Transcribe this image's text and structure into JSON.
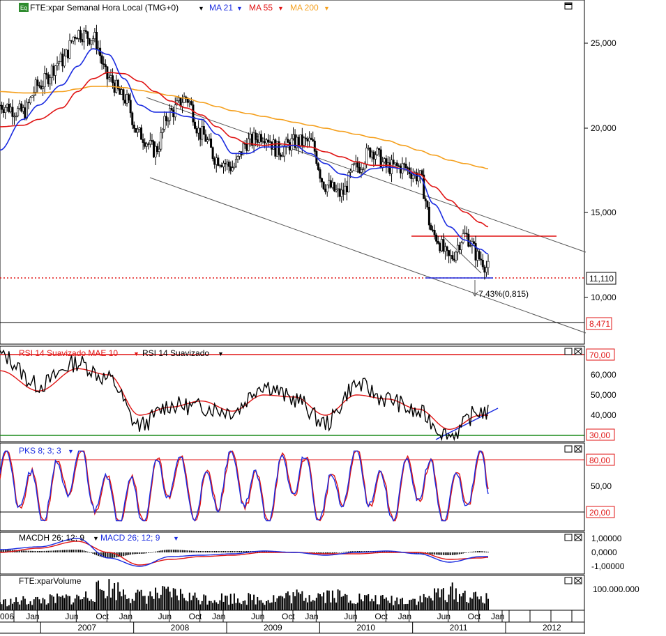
{
  "main_panel": {
    "icon_label": "Eq",
    "title": "FTE:xpar Semanal Hora Local (TMG+0)",
    "ma21_label": "MA 21",
    "ma55_label": "MA 55",
    "ma200_label": "MA 200",
    "price_ticks": [
      "25,000",
      "20,000",
      "15,000",
      "10,000"
    ],
    "last_price_label": "11,110",
    "support_label": "8,471",
    "annotation": "7,43%(0,815)"
  },
  "rsi_panel": {
    "title": "RSI 14 Suavizado MAE 10",
    "title2": "RSI 14 Suavizado",
    "ticks": [
      "70,00",
      "60,000",
      "50,000",
      "40,000",
      "30,00"
    ]
  },
  "pks_panel": {
    "title": "PKS 8; 3; 3",
    "ticks": [
      "80,00",
      "50,00",
      "20,00"
    ]
  },
  "macd_panel": {
    "title_a": "MACDH 26; 12; 9",
    "title_b": "MACD 26; 12; 9",
    "ticks": [
      "1,00000",
      "0,0000",
      "-1,00000"
    ]
  },
  "volume_panel": {
    "title": "FTE:xparVolume",
    "ticks": [
      "100.000.000"
    ]
  },
  "time_axis": {
    "months": [
      "006",
      "Jan",
      "Jun",
      "Oct",
      "Jan",
      "Jun",
      "Oct",
      "Jan",
      "Jun",
      "Oct",
      "Jan",
      "Jun",
      "Oct",
      "Jan",
      "Jun",
      "Oct",
      "Jan"
    ],
    "years": [
      "2007",
      "2008",
      "2009",
      "2010",
      "2011",
      "2012"
    ]
  },
  "colors": {
    "ma21": "#1a2be0",
    "ma55": "#e01414",
    "ma200": "#f5a01e",
    "rsi": "#000000",
    "rsi_mae": "#e01414",
    "pks_fast": "#1a2be0",
    "pks_slow": "#e01414",
    "oversold_line": "#1a8a1a"
  },
  "chart_data": [
    {
      "type": "line",
      "title": "FTE:xpar Semanal Hora Local (TMG+0)",
      "y_scale": "log",
      "ylim": [
        7.5,
        27.5
      ],
      "x": [
        "2006-10",
        "2007-01",
        "2007-03",
        "2007-06",
        "2007-08",
        "2007-10",
        "2007-12",
        "2008-02",
        "2008-04",
        "2008-06",
        "2008-08",
        "2008-10",
        "2008-12",
        "2009-02",
        "2009-04",
        "2009-06",
        "2009-08",
        "2009-10",
        "2009-12",
        "2010-02",
        "2010-04",
        "2010-06",
        "2010-08",
        "2010-10",
        "2010-12",
        "2011-02",
        "2011-04",
        "2011-06",
        "2011-08",
        "2011-10",
        "2011-12",
        "2012-01"
      ],
      "series": [
        {
          "name": "FTE:xpar",
          "values": [
            20.0,
            19.5,
            21.5,
            23.5,
            26.0,
            25.5,
            22.0,
            20.5,
            18.0,
            17.0,
            19.5,
            20.5,
            18.0,
            16.5,
            16.0,
            17.5,
            18.0,
            17.0,
            17.5,
            17.5,
            15.0,
            14.5,
            16.0,
            17.0,
            16.0,
            16.0,
            15.5,
            12.5,
            11.5,
            12.5,
            11.5,
            11.1
          ]
        },
        {
          "name": "MA 21",
          "values": [
            17.0,
            19.0,
            20.0,
            21.5,
            23.0,
            24.5,
            24.0,
            22.0,
            20.0,
            19.5,
            19.5,
            19.2,
            19.0,
            18.0,
            16.8,
            16.8,
            17.2,
            17.2,
            17.3,
            16.8,
            16.2,
            15.6,
            15.4,
            15.9,
            16.0,
            15.9,
            15.5,
            14.0,
            12.9,
            12.3,
            11.9,
            11.7
          ]
        },
        {
          "name": "MA 55",
          "values": [
            18.5,
            18.6,
            19.0,
            19.8,
            21.0,
            22.0,
            22.5,
            22.4,
            21.8,
            21.0,
            20.3,
            19.8,
            19.3,
            18.5,
            17.8,
            17.4,
            17.3,
            17.4,
            17.3,
            17.2,
            16.9,
            16.6,
            16.3,
            16.1,
            16.1,
            15.9,
            15.6,
            14.9,
            14.2,
            13.6,
            13.1,
            12.9
          ]
        },
        {
          "name": "MA 200",
          "values": [
            21.0,
            20.9,
            20.9,
            21.0,
            21.2,
            21.4,
            21.4,
            21.3,
            21.1,
            20.9,
            20.7,
            20.5,
            20.2,
            19.9,
            19.6,
            19.4,
            19.2,
            19.0,
            18.8,
            18.6,
            18.4,
            18.2,
            18.0,
            17.8,
            17.6,
            17.3,
            17.0,
            16.7,
            16.4,
            16.2,
            16.0,
            15.9
          ]
        }
      ],
      "annotations": {
        "last_price": 11.11,
        "support": 8.471,
        "resistance": 13.6,
        "target_pct": "7,43%(0,815)"
      }
    },
    {
      "type": "line",
      "title": "RSI 14 Suavizado MAE 10",
      "ylim": [
        27,
        72
      ],
      "levels": [
        70,
        30
      ],
      "x": [
        "2006-10",
        "2007-03",
        "2007-08",
        "2007-12",
        "2008-04",
        "2008-08",
        "2008-12",
        "2009-04",
        "2009-08",
        "2009-12",
        "2010-04",
        "2010-08",
        "2010-12",
        "2011-04",
        "2011-08",
        "2011-12",
        "2012-01"
      ],
      "series": [
        {
          "name": "RSI 14 Suavizado",
          "values": [
            70,
            55,
            66,
            58,
            35,
            45,
            44,
            42,
            55,
            48,
            36,
            55,
            48,
            41,
            30,
            42,
            41
          ]
        },
        {
          "name": "MAE 10",
          "values": [
            62,
            52,
            63,
            60,
            40,
            44,
            47,
            42,
            50,
            49,
            40,
            50,
            48,
            43,
            33,
            40,
            40
          ]
        }
      ]
    },
    {
      "type": "line",
      "title": "PKS 8; 3; 3",
      "ylim": [
        8,
        92
      ],
      "levels": [
        80,
        20
      ],
      "x": [
        "2006-10",
        "2007-03",
        "2007-08",
        "2007-12",
        "2008-04",
        "2008-08",
        "2008-12",
        "2009-04",
        "2009-08",
        "2009-12",
        "2010-04",
        "2010-08",
        "2010-12",
        "2011-04",
        "2011-08",
        "2011-12",
        "2012-01"
      ],
      "series": [
        {
          "name": "PKS fast",
          "values": [
            85,
            20,
            88,
            20,
            15,
            78,
            20,
            80,
            15,
            85,
            15,
            85,
            20,
            70,
            15,
            80,
            45
          ]
        },
        {
          "name": "PKS slow",
          "values": [
            82,
            25,
            85,
            25,
            18,
            75,
            25,
            77,
            18,
            82,
            20,
            82,
            24,
            68,
            18,
            76,
            42
          ]
        }
      ]
    },
    {
      "type": "bar",
      "title": "MACDH 26; 12; 9",
      "ylim": [
        -1.4,
        1.4
      ],
      "x": [
        "2006-10",
        "2007-03",
        "2007-08",
        "2007-12",
        "2008-04",
        "2008-08",
        "2008-12",
        "2009-04",
        "2009-08",
        "2009-12",
        "2010-04",
        "2010-08",
        "2010-12",
        "2011-04",
        "2011-08",
        "2011-12",
        "2012-01"
      ],
      "series": [
        {
          "name": "MACD 26; 12; 9",
          "values": [
            0.2,
            0.4,
            1.0,
            -0.4,
            -1.0,
            -0.3,
            -0.2,
            -0.1,
            0.1,
            0.0,
            -0.2,
            0.0,
            0.1,
            -0.1,
            -0.7,
            -0.3,
            -0.3
          ]
        },
        {
          "name": "Signal",
          "values": [
            0.0,
            0.3,
            0.8,
            0.0,
            -0.9,
            -0.5,
            -0.3,
            -0.2,
            0.0,
            0.0,
            -0.1,
            -0.1,
            0.0,
            0.0,
            -0.5,
            -0.4,
            -0.35
          ]
        }
      ]
    },
    {
      "type": "bar",
      "title": "FTE:xparVolume",
      "ylim": [
        0,
        140000000
      ],
      "x": [
        "2006-10",
        "2007-03",
        "2007-08",
        "2007-12",
        "2008-04",
        "2008-08",
        "2008-12",
        "2009-04",
        "2009-08",
        "2009-12",
        "2010-04",
        "2010-08",
        "2010-12",
        "2011-04",
        "2011-08",
        "2011-12",
        "2012-01"
      ],
      "series": [
        {
          "name": "FTE:xparVolume",
          "values": [
            40000000,
            50000000,
            60000000,
            110000000,
            70000000,
            80000000,
            60000000,
            60000000,
            55000000,
            70000000,
            80000000,
            60000000,
            50000000,
            55000000,
            90000000,
            60000000,
            55000000
          ]
        }
      ]
    }
  ]
}
